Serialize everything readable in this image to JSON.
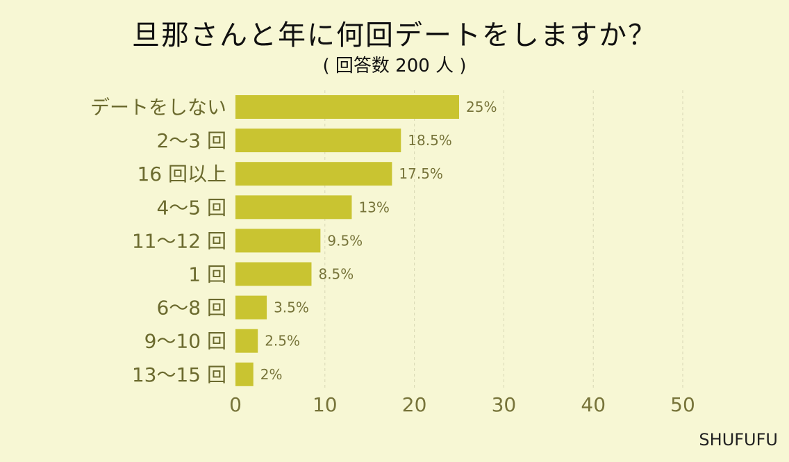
{
  "header": {
    "title": "旦那さんと年に何回デートをしますか？",
    "subtitle": "( 回答数 200 人 )"
  },
  "footer": {
    "brand": "SHUFUFU"
  },
  "colors": {
    "background": "#f7f7d4",
    "bar": "#c9c431",
    "grid": "#d7d6b4"
  },
  "chart_data": {
    "type": "bar",
    "orientation": "horizontal",
    "categories": [
      "デートをしない",
      "2～3 回",
      "16 回以上",
      "4～5 回",
      "11～12 回",
      "1 回",
      "6～8 回",
      "9～10 回",
      "13～15 回"
    ],
    "values": [
      25,
      18.5,
      17.5,
      13,
      9.5,
      8.5,
      3.5,
      2.5,
      2
    ],
    "value_labels": [
      "25%",
      "18.5%",
      "17.5%",
      "13%",
      "9.5%",
      "8.5%",
      "3.5%",
      "2.5%",
      "2%"
    ],
    "title": "旦那さんと年に何回デートをしますか？",
    "subtitle": "( 回答数 200 人 )",
    "xlim": [
      0,
      50
    ],
    "xticks": [
      "0",
      "10",
      "20",
      "30",
      "40",
      "50"
    ],
    "grid": true,
    "grid_style": "dashed vertical"
  }
}
